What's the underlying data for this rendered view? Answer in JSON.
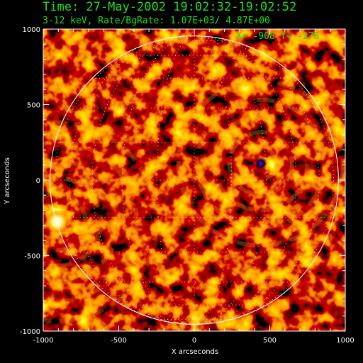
{
  "header": {
    "title": "Time: 27-May-2002 19:02:32-19:02:52",
    "subtitle": "3-12 keV, Rate/BgRate:  1.07E+03/  4.87E+00",
    "cursor_readout": "X= -908 Y= -276"
  },
  "colors": {
    "text": "#22dd22",
    "axes": "#ffffff",
    "background": "#000000"
  },
  "chart_data": {
    "type": "heatmap",
    "xlabel": "X arcseconds",
    "ylabel": "Y arcseconds",
    "xlim": [
      -1000,
      1000
    ],
    "ylim": [
      -1000,
      1000
    ],
    "x_ticks": [
      -1000,
      -500,
      0,
      500,
      1000
    ],
    "y_ticks": [
      -1000,
      -500,
      0,
      500,
      1000
    ],
    "solar_disk_radius": 955,
    "sources": [
      {
        "x": -908,
        "y": -276,
        "intensity": "max"
      },
      {
        "x": 440,
        "y": 110,
        "intensity": "min"
      }
    ],
    "grid": true
  }
}
